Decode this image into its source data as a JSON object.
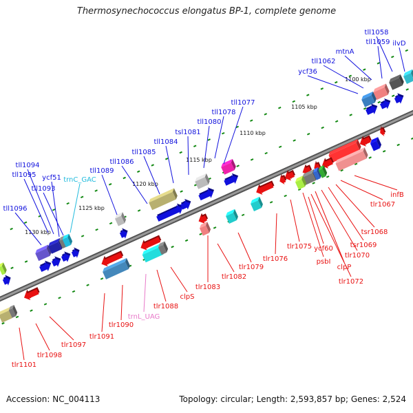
{
  "title": "Thermosynechococcus elongatus BP-1, complete genome",
  "footer": {
    "accession": "Accession: NC_004113",
    "summary": "Topology: circular; Length: 2,593,857 bp; Genes: 2,524"
  },
  "colors": {
    "forward": "#1010dd",
    "reverse": "#e81010",
    "trna_forward": "#22bbdd",
    "trna_reverse": "#e878c8",
    "backbone": "#777777",
    "tick": "#118811"
  },
  "scale_labels": [
    "1100 kbp",
    "1105 kbp",
    "1110 kbp",
    "1115 kbp",
    "1120 kbp",
    "1125 kbp",
    "1130 kbp"
  ],
  "forward_labels": [
    "ilvD",
    "tll1058",
    "tll1059",
    "mtnA",
    "tll1062",
    "ycf36",
    "tll1077",
    "tll1078",
    "tll1080",
    "tsl1081",
    "tll1084",
    "tll1085",
    "tll1086",
    "tll1089",
    "trnC_GAC",
    "tll1093",
    "ycf51",
    "tll1094",
    "tll1095",
    "tll1096"
  ],
  "reverse_labels": [
    "infB",
    "tlr1067",
    "tsr1068",
    "tsr1069",
    "tlr1070",
    "clpP",
    "psbI",
    "ycf60",
    "tlr1072",
    "tlr1075",
    "tlr1076",
    "tlr1079",
    "tlr1082",
    "tlr1083",
    "clpS",
    "tlr1088",
    "trnL_UAG",
    "tlr1090",
    "tlr1091",
    "tlr1097",
    "tlr1098",
    "tlr1101"
  ]
}
